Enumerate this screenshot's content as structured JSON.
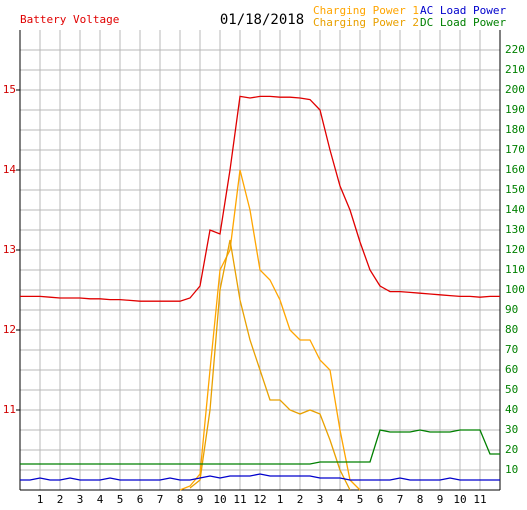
{
  "chart_data": {
    "type": "line",
    "title": "01/18/2018",
    "x": [
      0,
      0.5,
      1,
      1.5,
      2,
      2.5,
      3,
      3.5,
      4,
      4.5,
      5,
      5.5,
      6,
      6.5,
      7,
      7.5,
      8,
      8.5,
      9,
      9.5,
      10,
      10.5,
      11,
      11.5,
      12,
      12.5,
      13,
      13.5,
      14,
      14.5,
      15,
      15.5,
      16,
      16.5,
      17,
      17.5,
      18,
      18.5,
      19,
      19.5,
      20,
      20.5,
      21,
      21.5,
      22,
      22.5,
      23,
      23.5,
      24
    ],
    "xlim": [
      0,
      24
    ],
    "xticks": [
      1,
      2,
      3,
      4,
      5,
      6,
      7,
      8,
      9,
      10,
      11,
      12,
      {
        "value": 13,
        "label": "1"
      },
      {
        "value": 14,
        "label": "2"
      },
      {
        "value": 15,
        "label": "3"
      },
      {
        "value": 16,
        "label": "4"
      },
      {
        "value": 17,
        "label": "5"
      },
      {
        "value": 18,
        "label": "6"
      },
      {
        "value": 19,
        "label": "7"
      },
      {
        "value": 20,
        "label": "8"
      },
      {
        "value": 21,
        "label": "9"
      },
      {
        "value": 22,
        "label": "10"
      },
      {
        "value": 23,
        "label": "11"
      }
    ],
    "ylim": [
      10,
      15.75
    ],
    "yticks": [
      11,
      12,
      13,
      14,
      15
    ],
    "ytick_color": "#d00000",
    "y2lim": [
      0,
      230
    ],
    "y2ticks": [
      10,
      20,
      30,
      40,
      50,
      60,
      70,
      80,
      90,
      100,
      110,
      120,
      130,
      140,
      150,
      160,
      170,
      180,
      190,
      200,
      210,
      220
    ],
    "y2tick_color": "#008000",
    "grid": true,
    "series": [
      {
        "name": "Battery Voltage",
        "color": "#e00000",
        "axis": "y",
        "values": [
          12.42,
          12.42,
          12.42,
          12.41,
          12.4,
          12.4,
          12.4,
          12.39,
          12.39,
          12.38,
          12.38,
          12.37,
          12.36,
          12.36,
          12.36,
          12.36,
          12.36,
          12.4,
          12.55,
          13.25,
          13.2,
          14.0,
          14.92,
          14.9,
          14.92,
          14.92,
          14.91,
          14.91,
          14.9,
          14.88,
          14.75,
          14.25,
          13.8,
          13.5,
          13.1,
          12.75,
          12.55,
          12.48,
          12.48,
          12.47,
          12.46,
          12.45,
          12.44,
          12.43,
          12.42,
          12.42,
          12.41,
          12.42,
          12.42
        ]
      },
      {
        "name": "Charging Power 1",
        "color": "#ffa500",
        "axis": "y2",
        "values": [
          null,
          null,
          null,
          null,
          null,
          null,
          null,
          null,
          null,
          null,
          null,
          null,
          null,
          null,
          null,
          null,
          0,
          2,
          8,
          60,
          110,
          120,
          160,
          140,
          110,
          105,
          95,
          80,
          75,
          75,
          65,
          60,
          30,
          5,
          0,
          null,
          null,
          null,
          null,
          null,
          null,
          null,
          null,
          null,
          null,
          null,
          null,
          null,
          null
        ]
      },
      {
        "name": "Charging Power 2",
        "color": "#e8a000",
        "axis": "y2",
        "values": [
          null,
          null,
          null,
          null,
          null,
          null,
          null,
          null,
          null,
          null,
          null,
          null,
          null,
          null,
          null,
          null,
          null,
          1,
          5,
          40,
          100,
          125,
          95,
          75,
          60,
          45,
          45,
          40,
          38,
          40,
          38,
          25,
          10,
          0,
          null,
          null,
          null,
          null,
          null,
          null,
          null,
          null,
          null,
          null,
          null,
          null,
          null,
          null,
          null
        ]
      },
      {
        "name": "AC Load Power",
        "color": "#0000cc",
        "axis": "y2",
        "values": [
          5,
          5,
          6,
          5,
          5,
          6,
          5,
          5,
          5,
          6,
          5,
          5,
          5,
          5,
          5,
          6,
          5,
          5,
          6,
          7,
          6,
          7,
          7,
          7,
          8,
          7,
          7,
          7,
          7,
          7,
          6,
          6,
          6,
          5,
          5,
          5,
          5,
          5,
          6,
          5,
          5,
          5,
          5,
          6,
          5,
          5,
          5,
          5,
          5
        ]
      },
      {
        "name": "DC Load Power",
        "color": "#008000",
        "axis": "y2",
        "values": [
          13,
          13,
          13,
          13,
          13,
          13,
          13,
          13,
          13,
          13,
          13,
          13,
          13,
          13,
          13,
          13,
          13,
          13,
          13,
          13,
          13,
          13,
          13,
          13,
          13,
          13,
          13,
          13,
          13,
          13,
          14,
          14,
          14,
          14,
          14,
          14,
          30,
          29,
          29,
          29,
          30,
          29,
          29,
          29,
          30,
          30,
          30,
          18,
          18
        ]
      }
    ]
  }
}
